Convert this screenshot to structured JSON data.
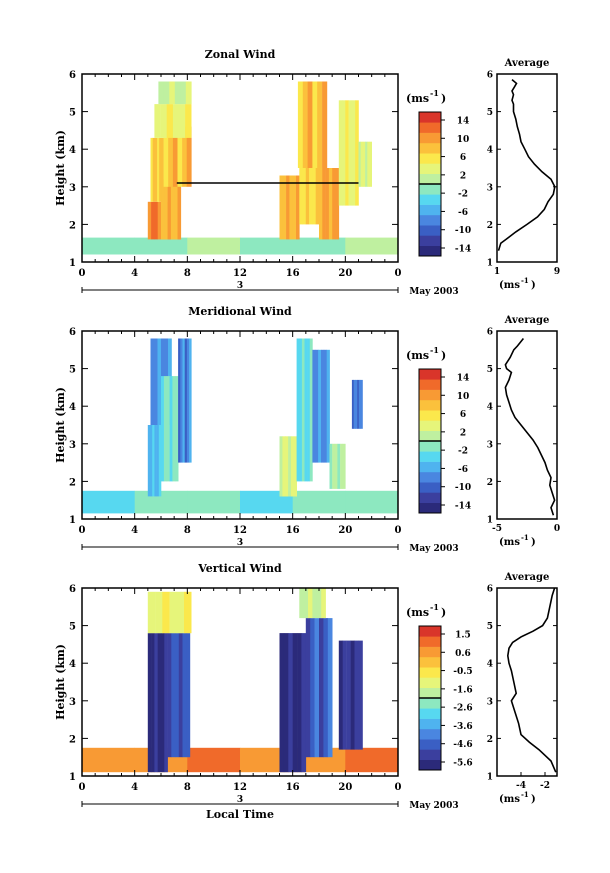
{
  "x_axis": {
    "ticks": [
      "0",
      "4",
      "8",
      "12",
      "16",
      "20",
      "0"
    ],
    "date_day": "3",
    "date_label": "May 2003",
    "xlabel": "Local Time"
  },
  "chart_data": [
    {
      "type": "heatmap",
      "title": "Zonal Wind",
      "ylabel": "Height (km)",
      "yticks": [
        "1",
        "2",
        "3",
        "4",
        "5",
        "6"
      ],
      "ylim": [
        1,
        6
      ],
      "xlim": [
        0,
        24
      ],
      "colorbar": {
        "unit_label": "(ms",
        "unit_exp": "-1",
        "unit_close": ")",
        "ticks": [
          "14",
          "10",
          "6",
          "2",
          "-2",
          "-6",
          "-10",
          "-14"
        ],
        "range": [
          -16,
          16
        ],
        "colors": [
          "#2b2a7a",
          "#3b3f9e",
          "#3a5fc4",
          "#4a86e0",
          "#4fb3ef",
          "#57d8f0",
          "#8de8c0",
          "#bff0a0",
          "#e6f57a",
          "#fbe84c",
          "#fbc13c",
          "#f89a34",
          "#f06a2a",
          "#d9352a"
        ]
      },
      "blocks": [
        {
          "x0": 0,
          "x1": 24,
          "y0": 1.2,
          "y1": 1.65,
          "v": -1
        },
        {
          "x0": 5,
          "x1": 6.5,
          "y0": 1.6,
          "y1": 2.6,
          "v": 12
        },
        {
          "x0": 6,
          "x1": 7.5,
          "y0": 1.6,
          "y1": 3.2,
          "v": 9
        },
        {
          "x0": 5.2,
          "x1": 6.2,
          "y0": 2.6,
          "y1": 4.3,
          "v": 7
        },
        {
          "x0": 6.2,
          "x1": 8.3,
          "y0": 3.0,
          "y1": 4.6,
          "v": 8
        },
        {
          "x0": 5.5,
          "x1": 8.3,
          "y0": 4.3,
          "y1": 5.2,
          "v": 4
        },
        {
          "x0": 5.8,
          "x1": 8.3,
          "y0": 5.2,
          "y1": 5.8,
          "v": 2
        },
        {
          "x0": 15.0,
          "x1": 16.5,
          "y0": 1.6,
          "y1": 3.3,
          "v": 9
        },
        {
          "x0": 16.5,
          "x1": 18.0,
          "y0": 2.0,
          "y1": 4.5,
          "v": 6
        },
        {
          "x0": 16.4,
          "x1": 18.6,
          "y0": 3.5,
          "y1": 5.8,
          "v": 8
        },
        {
          "x0": 18.0,
          "x1": 19.5,
          "y0": 1.6,
          "y1": 3.5,
          "v": 10
        },
        {
          "x0": 19.5,
          "x1": 21.0,
          "y0": 2.5,
          "y1": 5.3,
          "v": 4
        },
        {
          "x0": 21.0,
          "x1": 22.0,
          "y0": 3.0,
          "y1": 4.2,
          "v": 3
        }
      ],
      "threshold_line": {
        "x0": 7.2,
        "x1": 21.0,
        "y": 3.1
      },
      "average": {
        "title": "Average",
        "xticks": [
          "1",
          "9"
        ],
        "xlim": [
          1,
          9
        ],
        "xlabel": "(ms",
        "xlabel_exp": "-1",
        "xlabel_close": ")",
        "x": [
          1.2,
          1.5,
          2.2,
          3.5,
          5.0,
          6.4,
          7.3,
          7.8,
          8.5,
          8.7,
          8.2,
          7.0,
          6.0,
          5.2,
          4.7,
          4.2,
          4.0,
          3.7,
          3.5,
          3.2,
          3.2,
          3.0,
          3.2,
          3.0,
          3.3,
          3.6,
          3.0
        ],
        "y": [
          1.3,
          1.5,
          1.6,
          1.8,
          2.0,
          2.2,
          2.4,
          2.6,
          2.8,
          3.0,
          3.2,
          3.4,
          3.6,
          3.8,
          4.0,
          4.2,
          4.4,
          4.6,
          4.8,
          5.0,
          5.2,
          5.3,
          5.45,
          5.55,
          5.65,
          5.75,
          5.85
        ]
      }
    },
    {
      "type": "heatmap",
      "title": "Meridional Wind",
      "ylabel": "Height (km)",
      "yticks": [
        "1",
        "2",
        "3",
        "4",
        "5",
        "6"
      ],
      "ylim": [
        1,
        6
      ],
      "xlim": [
        0,
        24
      ],
      "colorbar": {
        "unit_label": "(ms",
        "unit_exp": "-1",
        "unit_close": ")",
        "ticks": [
          "14",
          "10",
          "6",
          "2",
          "-2",
          "-6",
          "-10",
          "-14"
        ],
        "range": [
          -16,
          16
        ],
        "colors": [
          "#2b2a7a",
          "#3b3f9e",
          "#3a5fc4",
          "#4a86e0",
          "#4fb3ef",
          "#57d8f0",
          "#8de8c0",
          "#bff0a0",
          "#e6f57a",
          "#fbe84c",
          "#fbc13c",
          "#f89a34",
          "#f06a2a",
          "#d9352a"
        ]
      },
      "blocks": [
        {
          "x0": 0,
          "x1": 24,
          "y0": 1.15,
          "y1": 1.75,
          "v": -2
        },
        {
          "x0": 5.0,
          "x1": 6.0,
          "y0": 1.6,
          "y1": 3.5,
          "v": -5
        },
        {
          "x0": 5.2,
          "x1": 6.8,
          "y0": 3.5,
          "y1": 5.8,
          "v": -7
        },
        {
          "x0": 6.0,
          "x1": 7.3,
          "y0": 2.0,
          "y1": 4.8,
          "v": -2
        },
        {
          "x0": 7.3,
          "x1": 8.3,
          "y0": 2.5,
          "y1": 5.8,
          "v": -8
        },
        {
          "x0": 15.0,
          "x1": 16.3,
          "y0": 1.6,
          "y1": 3.2,
          "v": 3
        },
        {
          "x0": 16.3,
          "x1": 17.5,
          "y0": 2.0,
          "y1": 5.8,
          "v": -3
        },
        {
          "x0": 17.5,
          "x1": 18.8,
          "y0": 2.5,
          "y1": 5.5,
          "v": -7
        },
        {
          "x0": 18.8,
          "x1": 20.0,
          "y0": 1.8,
          "y1": 3.0,
          "v": 1
        },
        {
          "x0": 20.5,
          "x1": 21.3,
          "y0": 3.4,
          "y1": 4.7,
          "v": -9
        }
      ],
      "threshold_line": null,
      "average": {
        "title": "Average",
        "xticks": [
          "-5",
          "0"
        ],
        "xlim": [
          -5,
          0
        ],
        "xlabel": "(ms",
        "xlabel_exp": "-1",
        "xlabel_close": ")",
        "x": [
          -0.3,
          -0.5,
          -0.2,
          -0.4,
          -0.6,
          -0.5,
          -0.8,
          -1.0,
          -1.3,
          -1.6,
          -2.0,
          -2.5,
          -3.0,
          -3.5,
          -3.8,
          -4.0,
          -4.2,
          -4.3,
          -4.0,
          -3.8,
          -4.2,
          -4.3,
          -3.9,
          -3.6,
          -3.3,
          -2.8
        ],
        "y": [
          1.1,
          1.3,
          1.5,
          1.7,
          1.9,
          2.1,
          2.3,
          2.5,
          2.7,
          2.9,
          3.1,
          3.3,
          3.5,
          3.7,
          3.9,
          4.1,
          4.3,
          4.5,
          4.7,
          4.9,
          5.0,
          5.1,
          5.3,
          5.5,
          5.6,
          5.8
        ]
      }
    },
    {
      "type": "heatmap",
      "title": "Vertical Wind",
      "ylabel": "Height (km)",
      "yticks": [
        "1",
        "2",
        "3",
        "4",
        "5",
        "6"
      ],
      "ylim": [
        1,
        6
      ],
      "xlim": [
        0,
        24
      ],
      "colorbar": {
        "unit_label": "(ms",
        "unit_exp": "-1",
        "unit_close": ")",
        "ticks": [
          "1.5",
          "0.6",
          "-0.5",
          "-1.6",
          "-2.6",
          "-3.6",
          "-4.6",
          "-5.6"
        ],
        "range": [
          -6,
          2
        ],
        "colors": [
          "#2b2a7a",
          "#3b3f9e",
          "#3a5fc4",
          "#4a86e0",
          "#4fb3ef",
          "#57d8f0",
          "#8de8c0",
          "#bff0a0",
          "#e6f57a",
          "#fbe84c",
          "#fbc13c",
          "#f89a34",
          "#f06a2a",
          "#d9352a"
        ]
      },
      "blocks": [
        {
          "x0": 0,
          "x1": 24,
          "y0": 1.1,
          "y1": 1.75,
          "v": 0.8
        },
        {
          "x0": 5.0,
          "x1": 6.5,
          "y0": 1.1,
          "y1": 4.8,
          "v": -5.6
        },
        {
          "x0": 6.5,
          "x1": 8.2,
          "y0": 1.5,
          "y1": 4.8,
          "v": -4.8
        },
        {
          "x0": 5.0,
          "x1": 8.3,
          "y0": 4.8,
          "y1": 5.9,
          "v": -1.0
        },
        {
          "x0": 15.0,
          "x1": 17.0,
          "y0": 1.1,
          "y1": 4.8,
          "v": -5.6
        },
        {
          "x0": 17.0,
          "x1": 19.0,
          "y0": 1.5,
          "y1": 5.2,
          "v": -4.6
        },
        {
          "x0": 16.5,
          "x1": 18.5,
          "y0": 5.2,
          "y1": 6.0,
          "v": -1.6
        },
        {
          "x0": 19.5,
          "x1": 21.3,
          "y0": 1.7,
          "y1": 4.6,
          "v": -5.2
        }
      ],
      "threshold_line": null,
      "average": {
        "title": "Average",
        "xticks": [
          "-4",
          "-2"
        ],
        "xlim": [
          -6,
          -1
        ],
        "xlabel": "(ms",
        "xlabel_exp": "-1",
        "xlabel_close": ")",
        "x": [
          -1.1,
          -1.5,
          -2.5,
          -3.3,
          -4.0,
          -4.2,
          -4.5,
          -4.8,
          -4.4,
          -4.6,
          -4.8,
          -5.0,
          -5.1,
          -5.0,
          -4.7,
          -4.0,
          -3.0,
          -2.2,
          -1.8,
          -1.6,
          -1.4,
          -1.2
        ],
        "y": [
          1.1,
          1.4,
          1.7,
          1.9,
          2.1,
          2.4,
          2.7,
          3.0,
          3.2,
          3.5,
          3.8,
          4.0,
          4.2,
          4.4,
          4.55,
          4.7,
          4.85,
          5.0,
          5.2,
          5.5,
          5.8,
          6.0
        ]
      }
    }
  ]
}
